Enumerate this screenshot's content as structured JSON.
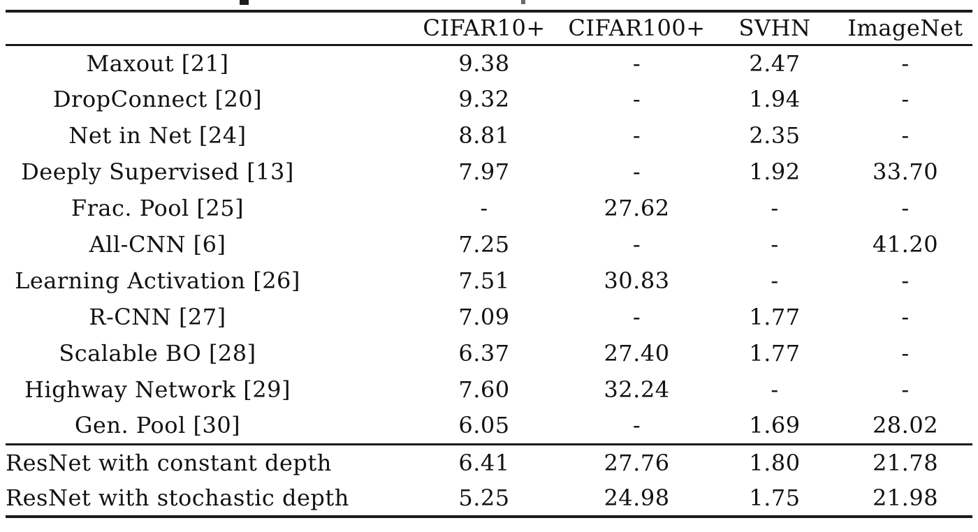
{
  "page": {
    "background": "#ffffff",
    "text_color": "#111111",
    "rule_color": "#1a1a1a"
  },
  "table": {
    "header": {
      "row_label": "",
      "columns": [
        "CIFAR10+",
        "CIFAR100+",
        "SVHN",
        "ImageNet"
      ]
    },
    "rows": [
      {
        "label": "Maxout [21]",
        "values": [
          "9.38",
          "-",
          "2.47",
          "-"
        ]
      },
      {
        "label": "DropConnect [20]",
        "values": [
          "9.32",
          "-",
          "1.94",
          "-"
        ]
      },
      {
        "label": "Net in Net [24]",
        "values": [
          "8.81",
          "-",
          "2.35",
          "-"
        ]
      },
      {
        "label": "Deeply Supervised [13]",
        "values": [
          "7.97",
          "-",
          "1.92",
          "33.70"
        ]
      },
      {
        "label": "Frac. Pool [25]",
        "values": [
          "-",
          "27.62",
          "-",
          "-"
        ]
      },
      {
        "label": "All-CNN [6]",
        "values": [
          "7.25",
          "-",
          "-",
          "41.20"
        ]
      },
      {
        "label": "Learning Activation [26]",
        "values": [
          "7.51",
          "30.83",
          "-",
          "-"
        ]
      },
      {
        "label": "R-CNN [27]",
        "values": [
          "7.09",
          "-",
          "1.77",
          "-"
        ]
      },
      {
        "label": "Scalable BO [28]",
        "values": [
          "6.37",
          "27.40",
          "1.77",
          "-"
        ]
      },
      {
        "label": "Highway Network [29]",
        "values": [
          "7.60",
          "32.24",
          "-",
          "-"
        ]
      },
      {
        "label": "Gen. Pool [30]",
        "values": [
          "6.05",
          "-",
          "1.69",
          "28.02"
        ]
      }
    ],
    "footer_rows": [
      {
        "label": "ResNet with constant depth",
        "values": [
          "6.41",
          "27.76",
          "1.80",
          "21.78"
        ]
      },
      {
        "label": "ResNet with stochastic depth",
        "values": [
          "5.25",
          "24.98",
          "1.75",
          "21.98"
        ]
      }
    ]
  }
}
